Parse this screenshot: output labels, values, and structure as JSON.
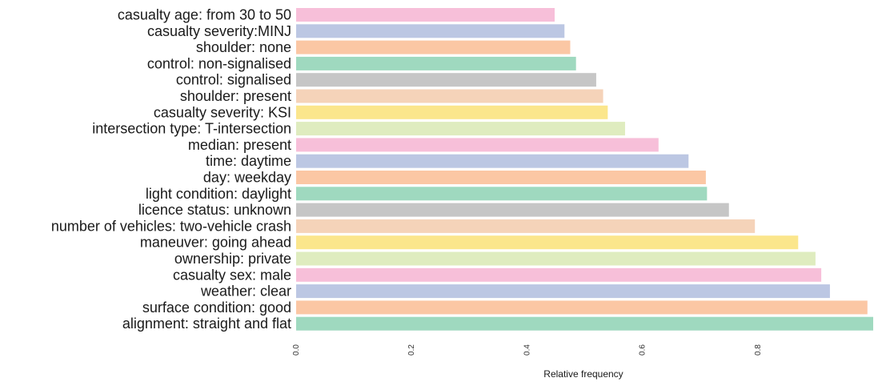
{
  "chart_data": {
    "type": "bar",
    "orientation": "horizontal",
    "title": "",
    "xlabel": "Relative frequency",
    "ylabel": "",
    "xlim": [
      0,
      1.0
    ],
    "x_ticks": [
      "0.0",
      "0.2",
      "0.4",
      "0.6",
      "0.8"
    ],
    "x_tick_values": [
      0.0,
      0.2,
      0.4,
      0.6,
      0.8
    ],
    "grid": false,
    "legend": "none",
    "categories": [
      "casualty age: from 30 to 50",
      "casualty severity:MINJ",
      "shoulder: none",
      "control: non-signalised",
      "control: signalised",
      "shoulder: present",
      "casualty severity: KSI",
      "intersection type: T-intersection",
      "median: present",
      "time: daytime",
      "day: weekday",
      "light condition: daylight",
      "licence status: unknown",
      "number of vehicles: two-vehicle crash",
      "maneuver: going ahead",
      "ownership: private",
      "casualty sex: male",
      "weather: clear",
      "surface condition: good",
      "alignment: straight and flat"
    ],
    "values": [
      0.448,
      0.465,
      0.475,
      0.485,
      0.52,
      0.532,
      0.54,
      0.57,
      0.628,
      0.68,
      0.71,
      0.712,
      0.75,
      0.795,
      0.87,
      0.9,
      0.91,
      0.925,
      0.99,
      1.0
    ],
    "colors": [
      "#f7bfd9",
      "#bcc7e3",
      "#fbc7a4",
      "#9fd9bf",
      "#c6c6c6",
      "#f5d3b9",
      "#fbe68c",
      "#dfecbf"
    ]
  }
}
